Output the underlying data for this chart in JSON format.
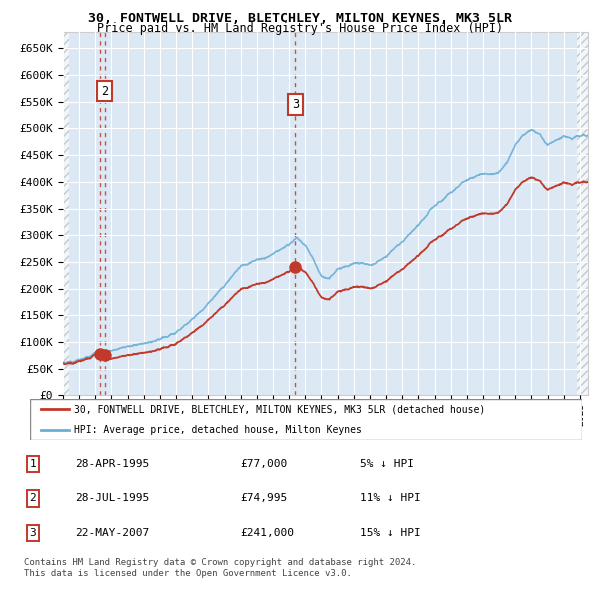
{
  "title": "30, FONTWELL DRIVE, BLETCHLEY, MILTON KEYNES, MK3 5LR",
  "subtitle": "Price paid vs. HM Land Registry's House Price Index (HPI)",
  "xlim": [
    1993.0,
    2025.5
  ],
  "ylim": [
    0,
    680000
  ],
  "yticks": [
    0,
    50000,
    100000,
    150000,
    200000,
    250000,
    300000,
    350000,
    400000,
    450000,
    500000,
    550000,
    600000,
    650000
  ],
  "sale_dates": [
    1995.32,
    1995.57,
    2007.39
  ],
  "sale_prices": [
    77000,
    74995,
    241000
  ],
  "hpi_color": "#6baed6",
  "price_color": "#c0392b",
  "background_color": "#dce9f5",
  "legend_line1": "30, FONTWELL DRIVE, BLETCHLEY, MILTON KEYNES, MK3 5LR (detached house)",
  "legend_line2": "HPI: Average price, detached house, Milton Keynes",
  "table_data": [
    [
      "1",
      "28-APR-1995",
      "£77,000",
      "5% ↓ HPI"
    ],
    [
      "2",
      "28-JUL-1995",
      "£74,995",
      "11% ↓ HPI"
    ],
    [
      "3",
      "22-MAY-2007",
      "£241,000",
      "15% ↓ HPI"
    ]
  ],
  "footer": "Contains HM Land Registry data © Crown copyright and database right 2024.\nThis data is licensed under the Open Government Licence v3.0.",
  "hpi_key_years": [
    1993,
    1994,
    1995,
    1996,
    1997,
    1998,
    1999,
    2000,
    2001,
    2002,
    2003,
    2004,
    2005,
    2006,
    2007,
    2007.5,
    2008,
    2008.5,
    2009,
    2009.5,
    2010,
    2011,
    2012,
    2013,
    2014,
    2015,
    2016,
    2017,
    2018,
    2019,
    2020,
    2020.5,
    2021,
    2021.5,
    2022,
    2022.5,
    2023,
    2023.5,
    2024,
    2024.5,
    2025
  ],
  "hpi_key_vals": [
    62000,
    68000,
    78000,
    88000,
    95000,
    100000,
    110000,
    125000,
    148000,
    180000,
    215000,
    250000,
    265000,
    275000,
    295000,
    310000,
    295000,
    270000,
    235000,
    230000,
    245000,
    255000,
    250000,
    265000,
    295000,
    325000,
    360000,
    390000,
    415000,
    430000,
    435000,
    455000,
    490000,
    510000,
    520000,
    510000,
    490000,
    500000,
    510000,
    505000,
    510000
  ]
}
